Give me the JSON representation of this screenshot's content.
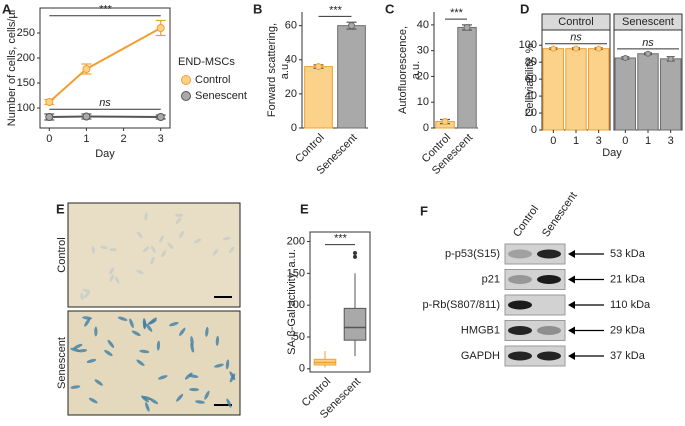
{
  "chart_data": [
    {
      "panel": "A",
      "type": "line",
      "ylabel": "Number of cells, cells/µl",
      "xlabel": "Day",
      "x": [
        0,
        1,
        3
      ],
      "xlim": [
        -0.25,
        3.25
      ],
      "xticks": [
        0,
        1,
        2,
        3
      ],
      "ylim": [
        60,
        300
      ],
      "yticks": [
        100,
        150,
        200,
        250
      ],
      "legend_title": "END-MSCs",
      "series": [
        {
          "name": "Control",
          "color": "#f0a030",
          "fill": "#fcd28a",
          "values": [
            112,
            178,
            260
          ],
          "errors": [
            5,
            10,
            15
          ]
        },
        {
          "name": "Senescent",
          "color": "#555555",
          "fill": "#a9a9a9",
          "values": [
            82,
            83,
            82
          ],
          "errors": [
            6,
            5,
            4
          ]
        }
      ],
      "annotations": [
        "***",
        "ns"
      ]
    },
    {
      "panel": "B",
      "type": "bar",
      "ylabel": [
        "Forward scattering,",
        "a.u."
      ],
      "categories": [
        "Control",
        "Senescent"
      ],
      "values": [
        36,
        60
      ],
      "errors": [
        1,
        2
      ],
      "colors": [
        "#fcd28a",
        "#a9a9a9"
      ],
      "edges": [
        "#f0a030",
        "#6e6e6e"
      ],
      "ylim": [
        0,
        68
      ],
      "yticks": [
        0,
        20,
        40,
        60
      ],
      "annotation": "***"
    },
    {
      "panel": "C",
      "type": "bar",
      "ylabel": [
        "Autofluorescence,",
        "a.u."
      ],
      "categories": [
        "Control",
        "Senescent"
      ],
      "values": [
        2.5,
        39
      ],
      "errors": [
        0.8,
        1
      ],
      "colors": [
        "#fcd28a",
        "#a9a9a9"
      ],
      "edges": [
        "#f0a030",
        "#6e6e6e"
      ],
      "ylim": [
        0,
        45
      ],
      "yticks": [
        0,
        10,
        20,
        30,
        40
      ],
      "annotation": "***"
    },
    {
      "panel": "D",
      "type": "facet-bar",
      "ylabel": "Cell viability, %",
      "xlabel": "Day",
      "categories": [
        "0",
        "1",
        "3"
      ],
      "ylim": [
        0,
        118
      ],
      "yticks": [
        0,
        20,
        40,
        60,
        80,
        100
      ],
      "facets": [
        {
          "name": "Control",
          "values": [
            96,
            96,
            96
          ],
          "errors": [
            1,
            1,
            1
          ],
          "color": "#fcd28a",
          "edge": "#f0a030",
          "annotation": "ns"
        },
        {
          "name": "Senescent",
          "values": [
            85,
            90,
            84
          ],
          "errors": [
            1.5,
            1,
            2.5
          ],
          "color": "#a9a9a9",
          "edge": "#6e6e6e",
          "annotation": "ns"
        }
      ]
    },
    {
      "panel": "E",
      "type": "box",
      "ylabel": "SA-β-Gal activity, a.u.",
      "categories": [
        "Control",
        "Senescent"
      ],
      "ylim": [
        -5,
        215
      ],
      "yticks": [
        0,
        50,
        100,
        150,
        200
      ],
      "colors": [
        "#fcd28a",
        "#a9a9a9"
      ],
      "edges": [
        "#f0a030",
        "#555555"
      ],
      "boxes": [
        {
          "min": 2,
          "q1": 6,
          "median": 10,
          "q3": 15,
          "max": 28,
          "outliers": []
        },
        {
          "min": 20,
          "q1": 45,
          "median": 65,
          "q3": 95,
          "max": 150,
          "outliers": [
            176,
            182
          ]
        }
      ],
      "annotation": "***"
    }
  ],
  "micrographs": {
    "panel": "E",
    "labels": [
      "Control",
      "Senescent"
    ]
  },
  "blot": {
    "panel": "F",
    "columns": [
      "Control",
      "Senescent"
    ],
    "rows": [
      {
        "protein": "p-p53(S15)",
        "size": "53 kDa"
      },
      {
        "protein": "p21",
        "size": "21 kDa"
      },
      {
        "protein": "p-Rb(S807/811)",
        "size": "110 kDa"
      },
      {
        "protein": "HMGB1",
        "size": "29 kDa"
      },
      {
        "protein": "GAPDH",
        "size": "37 kDa"
      }
    ]
  }
}
